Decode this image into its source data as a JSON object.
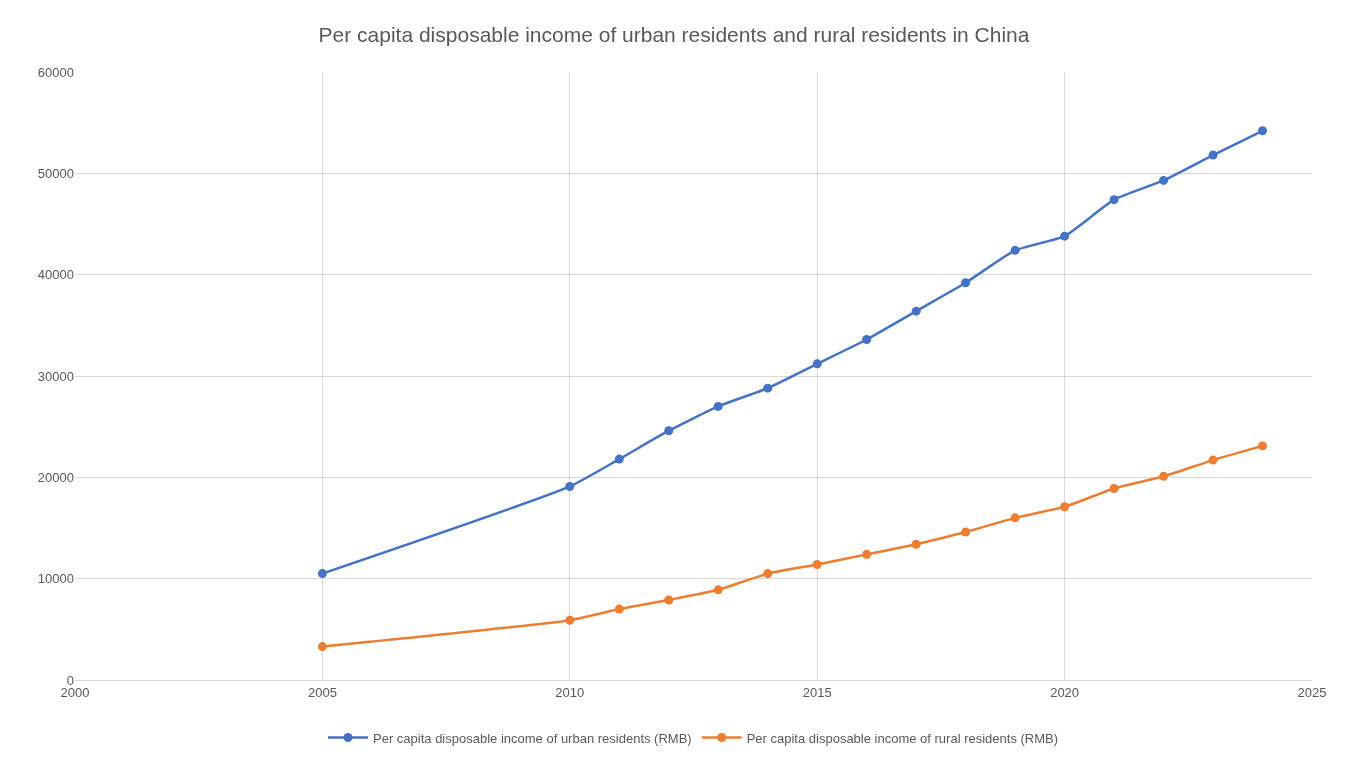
{
  "chart_data": {
    "type": "line",
    "title": "Per capita disposable income of urban residents and rural residents in China",
    "x": [
      2005,
      2010,
      2011,
      2012,
      2013,
      2014,
      2015,
      2016,
      2017,
      2018,
      2019,
      2020,
      2021,
      2022,
      2023,
      2024
    ],
    "series": [
      {
        "name": "Per capita disposable income of urban residents (RMB)",
        "color": "#4472c4",
        "values": [
          10500,
          19100,
          21800,
          24600,
          27000,
          28800,
          31200,
          33600,
          36400,
          39200,
          42400,
          43800,
          47400,
          49300,
          51800,
          54200
        ]
      },
      {
        "name": "Per capita disposable income of rural residents (RMB)",
        "color": "#ed7d31",
        "values": [
          3300,
          5900,
          7000,
          7900,
          8900,
          10500,
          11400,
          12400,
          13400,
          14600,
          16000,
          17100,
          18900,
          20100,
          21700,
          23100
        ]
      }
    ],
    "xlim": [
      2000,
      2025
    ],
    "xticks": [
      2000,
      2005,
      2010,
      2015,
      2020,
      2025
    ],
    "ylim": [
      0,
      60000
    ],
    "yticks": [
      0,
      10000,
      20000,
      30000,
      40000,
      50000,
      60000
    ],
    "grid": true,
    "legend": "bottom",
    "marker": "circle",
    "line_style": "solid"
  }
}
